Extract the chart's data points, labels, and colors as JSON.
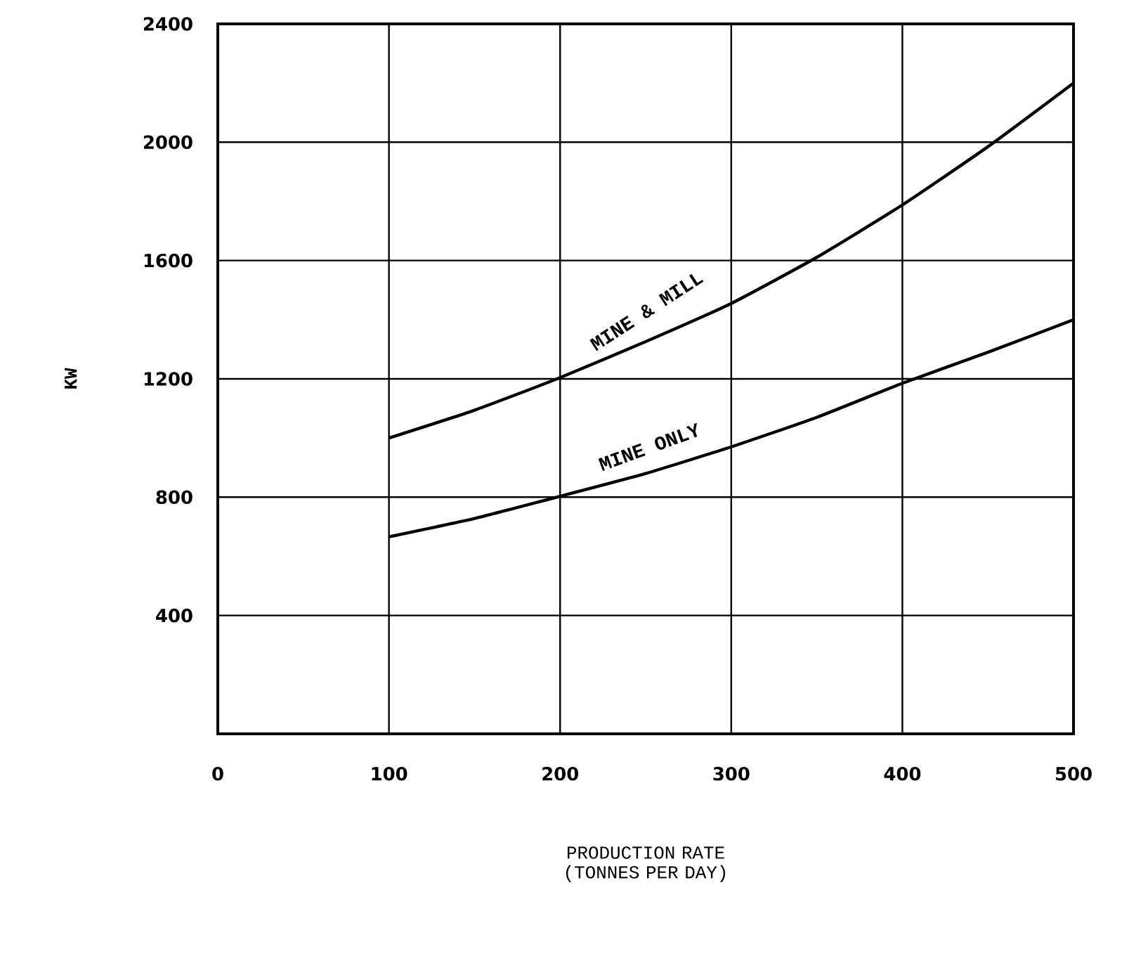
{
  "chart_data": {
    "type": "line",
    "xlabel": "PRODUCTION RATE (TONNES PER DAY)",
    "ylabel": "KW",
    "x": [
      100,
      150,
      200,
      250,
      300,
      350,
      400,
      450,
      500
    ],
    "series": [
      {
        "name": "MINE & MILL",
        "color": "#000000",
        "values": [
          1000,
          1094,
          1204,
          1326,
          1455,
          1611,
          1788,
          1985,
          2200
        ]
      },
      {
        "name": "MINE ONLY",
        "color": "#000000",
        "values": [
          666,
          728,
          803,
          880,
          970,
          1070,
          1185,
          1290,
          1400
        ]
      }
    ],
    "xlim": [
      0,
      500
    ],
    "ylim": [
      0,
      2400
    ],
    "xticks": [
      0,
      100,
      200,
      300,
      400,
      500
    ],
    "yticks": [
      400,
      800,
      1200,
      1600,
      2000,
      2400
    ],
    "grid": true,
    "legend": false,
    "marker": "none",
    "line_style": "solid"
  }
}
